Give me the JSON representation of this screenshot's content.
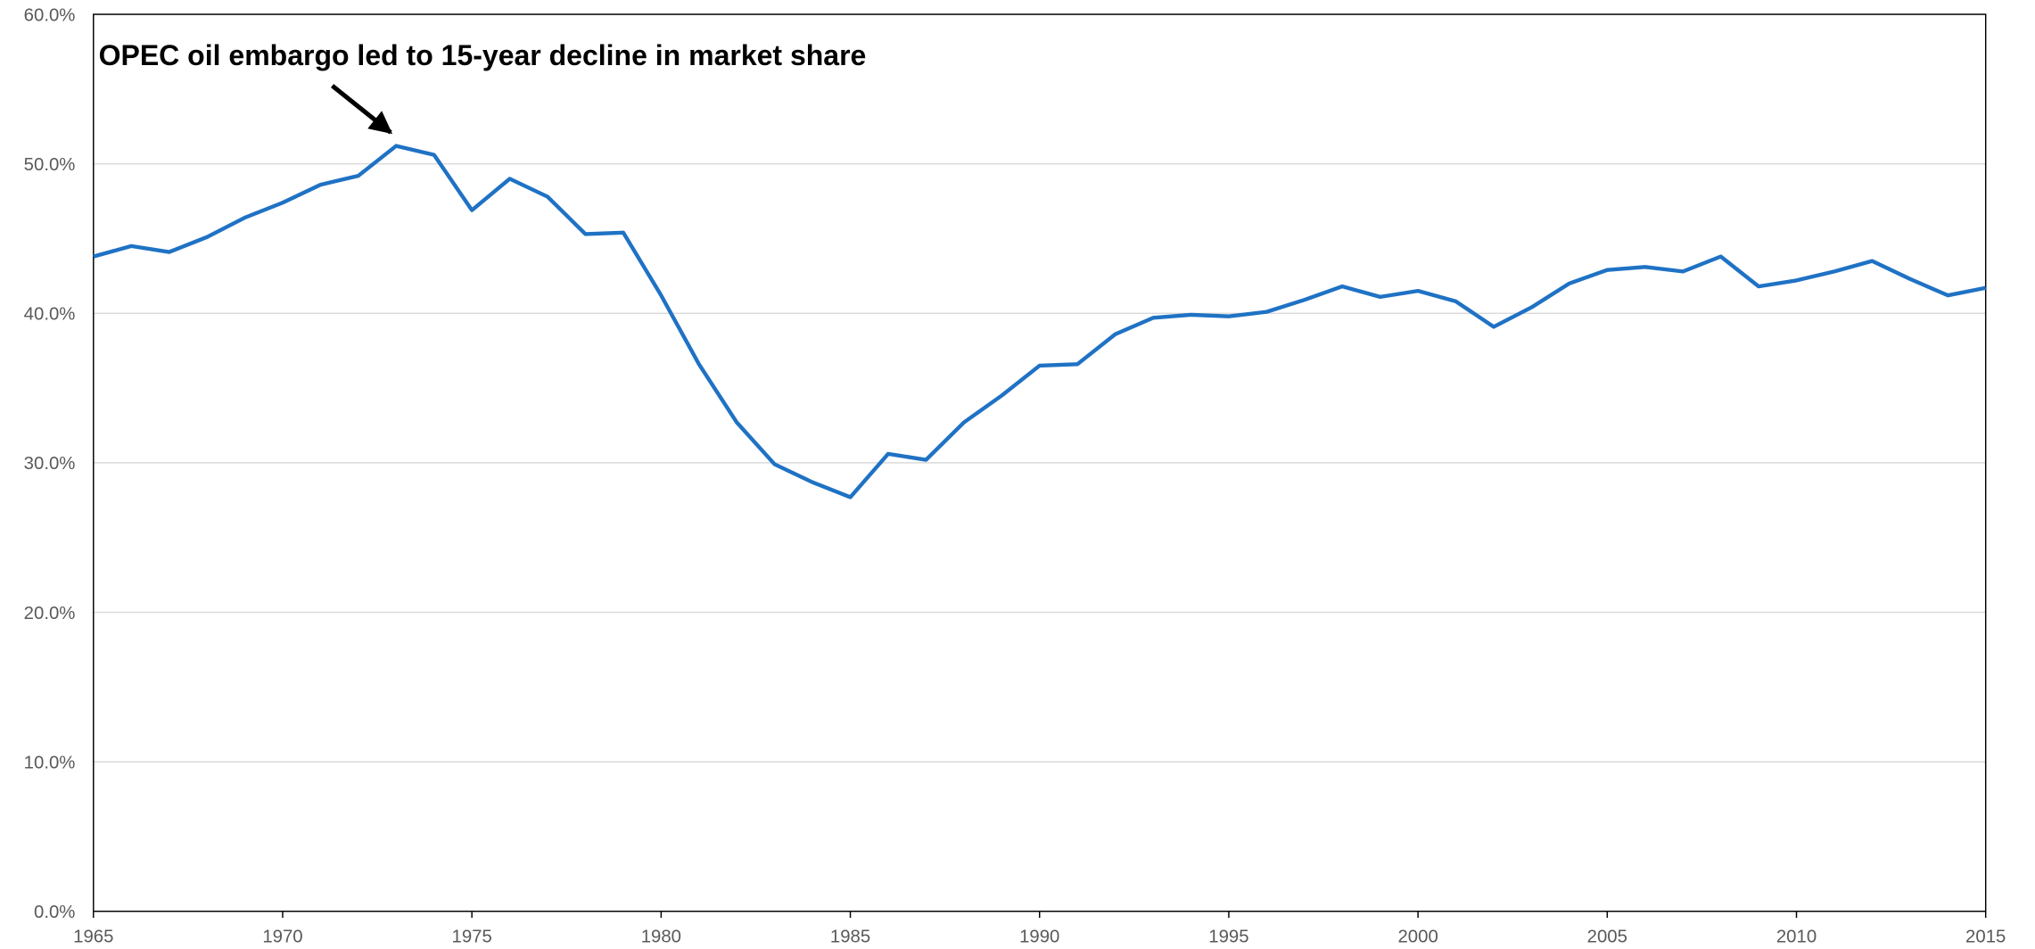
{
  "chart_data": {
    "type": "line",
    "annotation": "OPEC oil embargo led to 15-year decline in market share",
    "x": [
      1965,
      1966,
      1967,
      1968,
      1969,
      1970,
      1971,
      1972,
      1973,
      1974,
      1975,
      1976,
      1977,
      1978,
      1979,
      1980,
      1981,
      1982,
      1983,
      1984,
      1985,
      1986,
      1987,
      1988,
      1989,
      1990,
      1991,
      1992,
      1993,
      1994,
      1995,
      1996,
      1997,
      1998,
      1999,
      2000,
      2001,
      2002,
      2003,
      2004,
      2005,
      2006,
      2007,
      2008,
      2009,
      2010,
      2011,
      2012,
      2013,
      2014,
      2015
    ],
    "values": [
      43.8,
      44.5,
      44.1,
      45.1,
      46.4,
      47.4,
      48.6,
      49.2,
      51.2,
      50.6,
      46.9,
      49.0,
      47.8,
      45.3,
      45.4,
      41.2,
      36.6,
      32.7,
      29.9,
      28.7,
      27.7,
      30.6,
      30.2,
      32.7,
      34.5,
      36.5,
      36.6,
      38.6,
      39.7,
      39.9,
      39.8,
      40.1,
      40.9,
      41.8,
      41.1,
      41.5,
      40.8,
      39.1,
      40.4,
      42.0,
      42.9,
      43.1,
      42.8,
      43.8,
      41.8,
      42.2,
      42.8,
      43.5,
      42.3,
      41.2,
      41.7
    ],
    "color": "#1f72c4",
    "xlim": [
      1965,
      2015
    ],
    "xticks": [
      1965,
      1970,
      1975,
      1980,
      1985,
      1990,
      1995,
      2000,
      2005,
      2010,
      2015
    ],
    "ylim": [
      0,
      60
    ],
    "yticks": [
      {
        "value": 0,
        "label": "0.0%"
      },
      {
        "value": 10,
        "label": "10.0%"
      },
      {
        "value": 20,
        "label": "20.0%"
      },
      {
        "value": 30,
        "label": "30.0%"
      },
      {
        "value": 40,
        "label": "40.0%"
      },
      {
        "value": 50,
        "label": "50.0%"
      },
      {
        "value": 60,
        "label": "60.0%"
      }
    ],
    "grid": true
  }
}
